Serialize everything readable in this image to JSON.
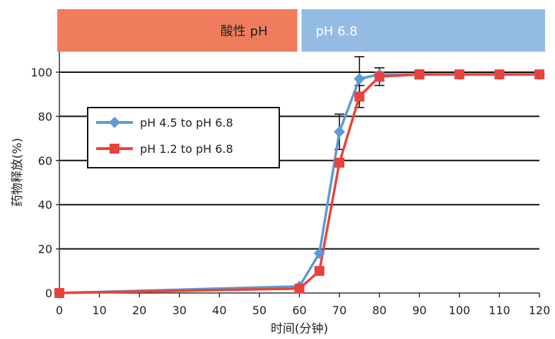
{
  "chart_data": {
    "type": "line",
    "xlabel": "时间(分钟)",
    "ylabel": "药物释放(%)",
    "xlim": [
      0,
      120
    ],
    "ylim": [
      0,
      100
    ],
    "xticks": [
      0,
      10,
      20,
      30,
      40,
      50,
      60,
      70,
      80,
      90,
      100,
      110,
      120
    ],
    "yticks": [
      0,
      20,
      40,
      60,
      80,
      100
    ],
    "grid": "horizontal",
    "legend_position": "upper-left",
    "bands": [
      {
        "label": "酸性 pH",
        "x_start": 0,
        "x_end": 60,
        "color": "#f07c5e"
      },
      {
        "label": "pH 6.8",
        "x_start": 60,
        "x_end": 120,
        "color": "#93bbe4"
      }
    ],
    "series": [
      {
        "name": "pH 4.5 to pH 6.8",
        "color": "#5b9bd5",
        "marker": "diamond",
        "x": [
          0,
          60,
          65,
          70,
          75,
          80,
          90,
          100,
          110,
          120
        ],
        "y": [
          0,
          3,
          18,
          73,
          97,
          99,
          99,
          99,
          99,
          99
        ],
        "err": [
          0,
          0,
          0,
          8,
          10,
          3,
          2,
          0,
          0,
          0
        ]
      },
      {
        "name": "pH 1.2 to pH 6.8",
        "color": "#e8433a",
        "marker": "square",
        "x": [
          0,
          60,
          65,
          70,
          75,
          80,
          90,
          100,
          110,
          120
        ],
        "y": [
          0,
          2,
          10,
          59,
          89,
          98,
          99,
          99,
          99,
          99
        ],
        "err": [
          0,
          0,
          0,
          0,
          5,
          4,
          1,
          0,
          0,
          0
        ]
      }
    ]
  }
}
